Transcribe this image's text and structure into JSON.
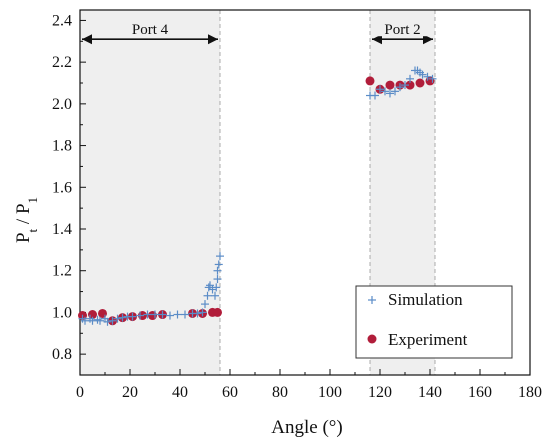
{
  "chart_data": {
    "type": "scatter",
    "xlabel": "Angle (°)",
    "ylabel": {
      "P1": "P",
      "s1": "t",
      "slash": " / P",
      "s2": "1"
    },
    "xlim": [
      0,
      180
    ],
    "ylim": [
      0.7,
      2.45
    ],
    "xticks": [
      0,
      20,
      40,
      60,
      80,
      100,
      120,
      140,
      160,
      180
    ],
    "yticks": [
      0.8,
      1.0,
      1.2,
      1.4,
      1.6,
      1.8,
      2.0,
      2.2,
      2.4
    ],
    "xtick_labels": [
      "0",
      "20",
      "40",
      "60",
      "80",
      "100",
      "120",
      "140",
      "160",
      "180"
    ],
    "ytick_labels": [
      "0.8",
      "1.0",
      "1.2",
      "1.4",
      "1.6",
      "1.8",
      "2.0",
      "2.2",
      "2.4"
    ],
    "grid": false,
    "legend_position": "bottom-right",
    "regions": [
      {
        "label": "Port 4",
        "x_range": [
          0,
          56
        ],
        "arrow_y": 2.31
      },
      {
        "label": "Port 2",
        "x_range": [
          116,
          142
        ],
        "arrow_y": 2.31
      }
    ],
    "series": [
      {
        "name": "Simulation",
        "marker": "plus",
        "color": "#5b8cc7",
        "points": [
          [
            1,
            0.97
          ],
          [
            2,
            0.96
          ],
          [
            4,
            0.97
          ],
          [
            5,
            0.96
          ],
          [
            7,
            0.965
          ],
          [
            8,
            0.96
          ],
          [
            10,
            0.97
          ],
          [
            11,
            0.955
          ],
          [
            13,
            0.96
          ],
          [
            15,
            0.97
          ],
          [
            17,
            0.975
          ],
          [
            19,
            0.98
          ],
          [
            21,
            0.98
          ],
          [
            24,
            0.985
          ],
          [
            27,
            0.99
          ],
          [
            30,
            0.99
          ],
          [
            33,
            0.99
          ],
          [
            36,
            0.985
          ],
          [
            39,
            0.99
          ],
          [
            42,
            0.99
          ],
          [
            45,
            0.995
          ],
          [
            47,
            0.995
          ],
          [
            49,
            1.0
          ],
          [
            50,
            1.04
          ],
          [
            51,
            1.08
          ],
          [
            51.5,
            1.12
          ],
          [
            52,
            1.13
          ],
          [
            53,
            1.11
          ],
          [
            54,
            1.08
          ],
          [
            54.5,
            1.12
          ],
          [
            55,
            1.16
          ],
          [
            55,
            1.2
          ],
          [
            55.5,
            1.23
          ],
          [
            56,
            1.27
          ],
          [
            116,
            2.04
          ],
          [
            118,
            2.04
          ],
          [
            120,
            2.07
          ],
          [
            122,
            2.06
          ],
          [
            124,
            2.05
          ],
          [
            126,
            2.06
          ],
          [
            128,
            2.08
          ],
          [
            130,
            2.09
          ],
          [
            132,
            2.12
          ],
          [
            134,
            2.16
          ],
          [
            135,
            2.16
          ],
          [
            136,
            2.15
          ],
          [
            137,
            2.14
          ],
          [
            139,
            2.13
          ],
          [
            141,
            2.12
          ]
        ]
      },
      {
        "name": "Experiment",
        "marker": "circle",
        "color": "#b11d3a",
        "points": [
          [
            1,
            0.985
          ],
          [
            5,
            0.99
          ],
          [
            9,
            0.995
          ],
          [
            13,
            0.96
          ],
          [
            17,
            0.975
          ],
          [
            21,
            0.98
          ],
          [
            25,
            0.985
          ],
          [
            29,
            0.985
          ],
          [
            33,
            0.99
          ],
          [
            45,
            0.995
          ],
          [
            49,
            0.995
          ],
          [
            53,
            1.0
          ],
          [
            55,
            1.0
          ],
          [
            116,
            2.11
          ],
          [
            120,
            2.07
          ],
          [
            124,
            2.09
          ],
          [
            128,
            2.09
          ],
          [
            132,
            2.09
          ],
          [
            136,
            2.1
          ],
          [
            140,
            2.11
          ]
        ]
      }
    ]
  }
}
